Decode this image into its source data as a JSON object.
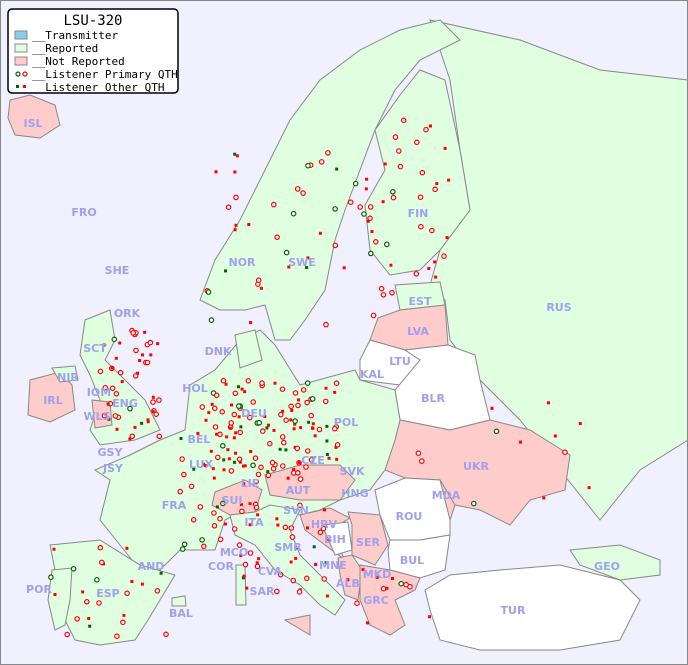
{
  "title": "LSU-320",
  "legend": {
    "items": [
      {
        "label": "__Transmitter",
        "color": "#87ceeb"
      },
      {
        "label": "__Reported",
        "color": "#e0ffe0"
      },
      {
        "label": "__Not Reported",
        "color": "#ffcccc"
      },
      {
        "label": "__Listener Primary QTH",
        "colors": [
          "#006400",
          "#ff0000"
        ]
      },
      {
        "label": "__Listener Other QTH",
        "colors": [
          "#006400",
          "#ff0000"
        ]
      }
    ]
  },
  "colors": {
    "sea": "#f0f0ff",
    "reported": "#e0ffe0",
    "not_reported": "#ffcccc",
    "unlisted": "#ffffff",
    "border": "#888888",
    "label": "#a0a0ee"
  },
  "countries": {
    "reported": [
      "FRO",
      "SHE",
      "ORK",
      "NOR",
      "SWE",
      "FIN",
      "EST",
      "RUS",
      "KAL",
      "DNK",
      "SCT",
      "NIR",
      "IOM",
      "ENG",
      "HOL",
      "BEL",
      "LUX",
      "DEU",
      "POL",
      "CZE",
      "SVK",
      "HNG",
      "LIE",
      "FRA",
      "GSY",
      "JSY",
      "SVN",
      "ITA",
      "SMR",
      "MCO",
      "COR",
      "CVA",
      "AND",
      "POR",
      "ESP",
      "BAL",
      "SAR",
      "GEO"
    ],
    "not_reported": [
      "ISL",
      "LVA",
      "IRL",
      "WLS",
      "UKR",
      "MDA",
      "AUT",
      "SUI",
      "HRV",
      "SER",
      "MNE",
      "ALB",
      "MKD",
      "GRC"
    ],
    "unlisted": [
      "LTU",
      "BLR",
      "ROU",
      "BIH",
      "BUL",
      "TUR"
    ]
  },
  "labels": [
    "ISL",
    "FRO",
    "SHE",
    "ORK",
    "NOR",
    "SWE",
    "FIN",
    "EST",
    "RUS",
    "LVA",
    "LTU",
    "KAL",
    "BLR",
    "DNK",
    "SCT",
    "NIR",
    "IRL",
    "IOM",
    "ENG",
    "WLS",
    "HOL",
    "BEL",
    "LUX",
    "DEU",
    "POL",
    "CZE",
    "SVK",
    "UKR",
    "MDA",
    "HNG",
    "AUT",
    "SUI",
    "LIE",
    "FRA",
    "GSY",
    "JSY",
    "SVN",
    "HRV",
    "ITA",
    "ROU",
    "BIH",
    "SER",
    "SMR",
    "BUL",
    "MNE",
    "MCO",
    "COR",
    "CVA",
    "AND",
    "POR",
    "ESP",
    "BAL",
    "SAR",
    "ALB",
    "MKD",
    "GRC",
    "TUR",
    "GEO"
  ]
}
